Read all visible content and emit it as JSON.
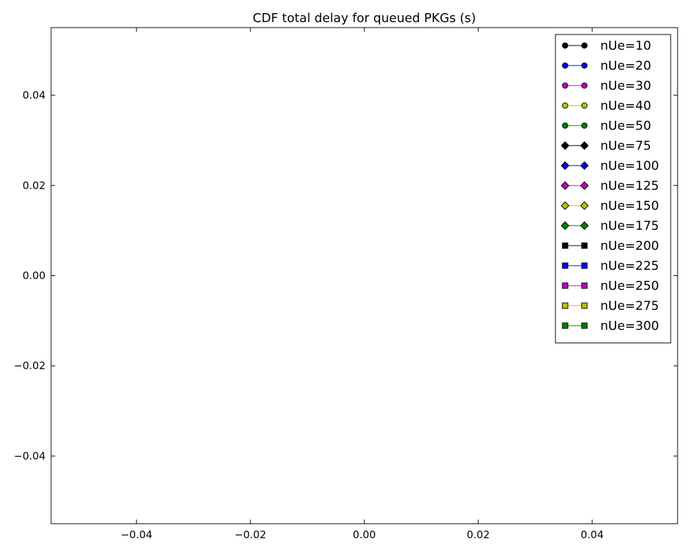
{
  "chart_data": {
    "type": "line",
    "title": "CDF total delay for queued PKGs (s)",
    "xlabel": "",
    "ylabel": "",
    "xlim": [
      -0.055,
      0.055
    ],
    "ylim": [
      -0.055,
      0.055
    ],
    "x_ticks": [
      {
        "value": -0.04,
        "label": "−0.04"
      },
      {
        "value": -0.02,
        "label": "−0.02"
      },
      {
        "value": 0.0,
        "label": "0.00"
      },
      {
        "value": 0.02,
        "label": "0.02"
      },
      {
        "value": 0.04,
        "label": "0.04"
      }
    ],
    "y_ticks": [
      {
        "value": -0.04,
        "label": "−0.04"
      },
      {
        "value": -0.02,
        "label": "−0.02"
      },
      {
        "value": 0.0,
        "label": "0.00"
      },
      {
        "value": 0.02,
        "label": "0.02"
      },
      {
        "value": 0.04,
        "label": "0.04"
      }
    ],
    "grid": false,
    "legend_position": "top-right",
    "series": [
      {
        "name": "nUe=10",
        "color": "#000000",
        "marker": "circle",
        "x": [],
        "y": []
      },
      {
        "name": "nUe=20",
        "color": "#0000ff",
        "marker": "circle",
        "x": [],
        "y": []
      },
      {
        "name": "nUe=30",
        "color": "#bf00bf",
        "marker": "circle",
        "x": [],
        "y": []
      },
      {
        "name": "nUe=40",
        "color": "#bfbf00",
        "marker": "circle",
        "x": [],
        "y": []
      },
      {
        "name": "nUe=50",
        "color": "#008000",
        "marker": "circle",
        "x": [],
        "y": []
      },
      {
        "name": "nUe=75",
        "color": "#000000",
        "marker": "diamond",
        "x": [],
        "y": []
      },
      {
        "name": "nUe=100",
        "color": "#0000ff",
        "marker": "diamond",
        "x": [],
        "y": []
      },
      {
        "name": "nUe=125",
        "color": "#bf00bf",
        "marker": "diamond",
        "x": [],
        "y": []
      },
      {
        "name": "nUe=150",
        "color": "#bfbf00",
        "marker": "diamond",
        "x": [],
        "y": []
      },
      {
        "name": "nUe=175",
        "color": "#008000",
        "marker": "diamond",
        "x": [],
        "y": []
      },
      {
        "name": "nUe=200",
        "color": "#000000",
        "marker": "square",
        "x": [],
        "y": []
      },
      {
        "name": "nUe=225",
        "color": "#0000ff",
        "marker": "square",
        "x": [],
        "y": []
      },
      {
        "name": "nUe=250",
        "color": "#bf00bf",
        "marker": "square",
        "x": [],
        "y": []
      },
      {
        "name": "nUe=275",
        "color": "#bfbf00",
        "marker": "square",
        "x": [],
        "y": []
      },
      {
        "name": "nUe=300",
        "color": "#008000",
        "marker": "square",
        "x": [],
        "y": []
      }
    ]
  }
}
